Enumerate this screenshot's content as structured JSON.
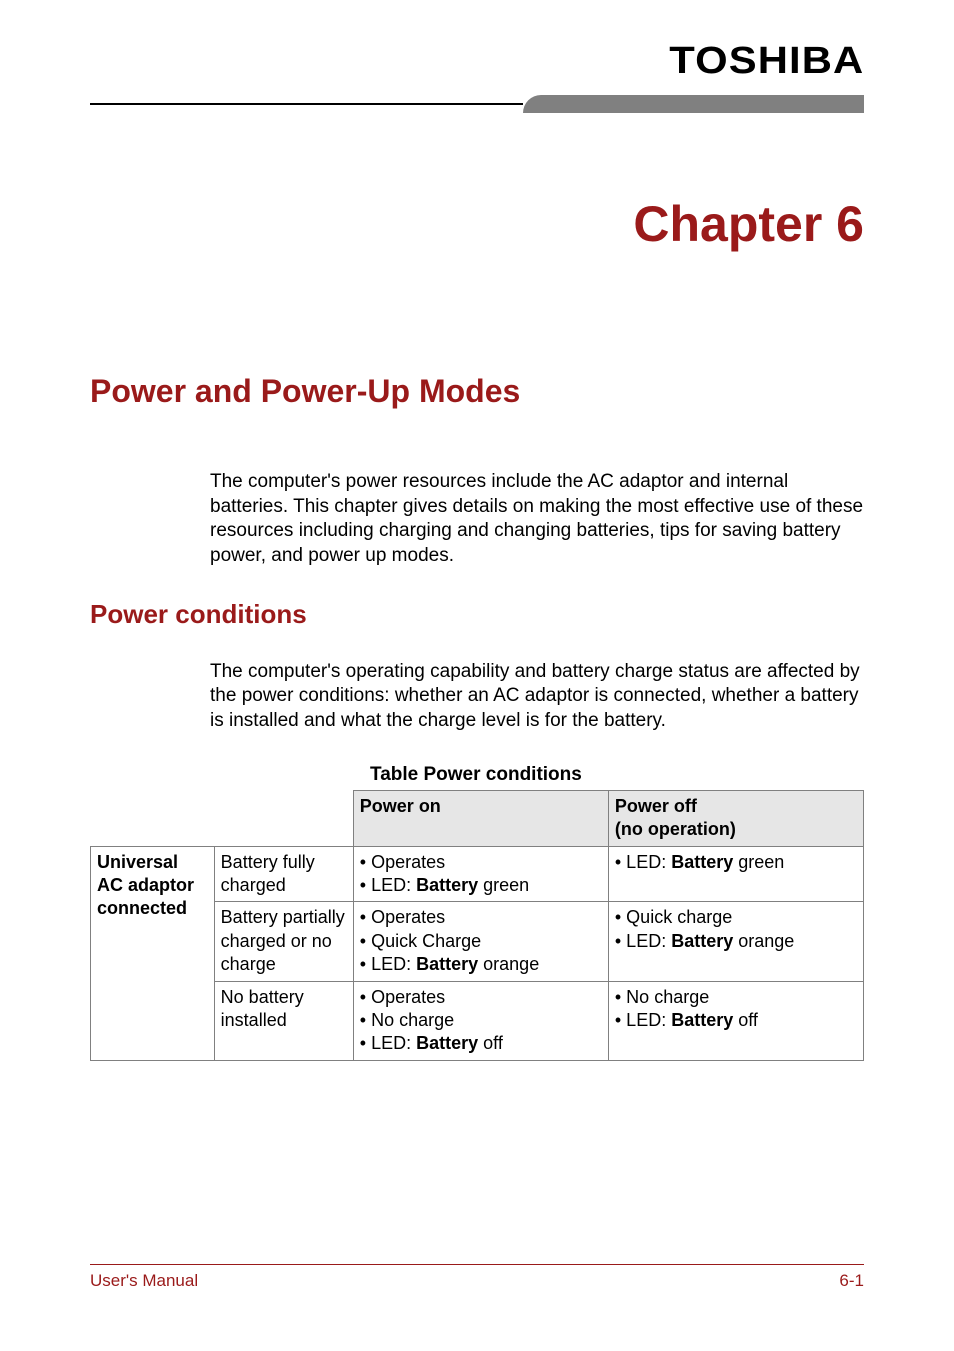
{
  "brand": "TOSHIBA",
  "colors": {
    "accent": "#9a1a1a",
    "rule_gray": "#808080",
    "header_bg": "#e6e6e6",
    "text": "#000000",
    "bg": "#ffffff"
  },
  "chapter": {
    "title": "Chapter 6"
  },
  "section": {
    "title": "Power and Power-Up Modes"
  },
  "intro_paragraph": "The computer's power resources include the AC adaptor and internal batteries. This chapter gives details on making the most effective use of these resources including charging and changing batteries, tips for saving battery power, and power up modes.",
  "subsection": {
    "title": "Power conditions"
  },
  "subsection_paragraph": "The computer's operating capability and battery charge status are affected by the power conditions: whether an AC adaptor is connected, whether a battery is installed and what the charge level is for the battery.",
  "table": {
    "caption": "Table Power conditions",
    "headers": {
      "power_on": "Power on",
      "power_off_line1": "Power off",
      "power_off_line2": "(no operation)"
    },
    "group_label_line1": "Universal",
    "group_label_line2": "AC adaptor",
    "group_label_line3": "connected",
    "rows": [
      {
        "state": "Battery fully charged",
        "on": [
          {
            "prefix": "• ",
            "text": "Operates"
          },
          {
            "prefix": "• LED: ",
            "bold": "Battery",
            "suffix": " green"
          }
        ],
        "off": [
          {
            "prefix": "• LED: ",
            "bold": "Battery",
            "suffix": " green"
          }
        ]
      },
      {
        "state": "Battery partially charged or no charge",
        "on": [
          {
            "prefix": "• ",
            "text": "Operates"
          },
          {
            "prefix": "• ",
            "text": "Quick Charge"
          },
          {
            "prefix": "• LED: ",
            "bold": "Battery",
            "suffix": " orange"
          }
        ],
        "off": [
          {
            "prefix": "• ",
            "text": "Quick charge"
          },
          {
            "prefix": "• LED: ",
            "bold": "Battery",
            "suffix": " orange"
          }
        ]
      },
      {
        "state": "No battery installed",
        "on": [
          {
            "prefix": "• ",
            "text": "Operates"
          },
          {
            "prefix": "• ",
            "text": "No charge"
          },
          {
            "prefix": "• LED: ",
            "bold": "Battery",
            "suffix": " off"
          }
        ],
        "off": [
          {
            "prefix": "• ",
            "text": "No charge"
          },
          {
            "prefix": "• LED: ",
            "bold": "Battery",
            "suffix": " off"
          }
        ]
      }
    ]
  },
  "footer": {
    "left": "User's Manual",
    "right": "6-1"
  }
}
